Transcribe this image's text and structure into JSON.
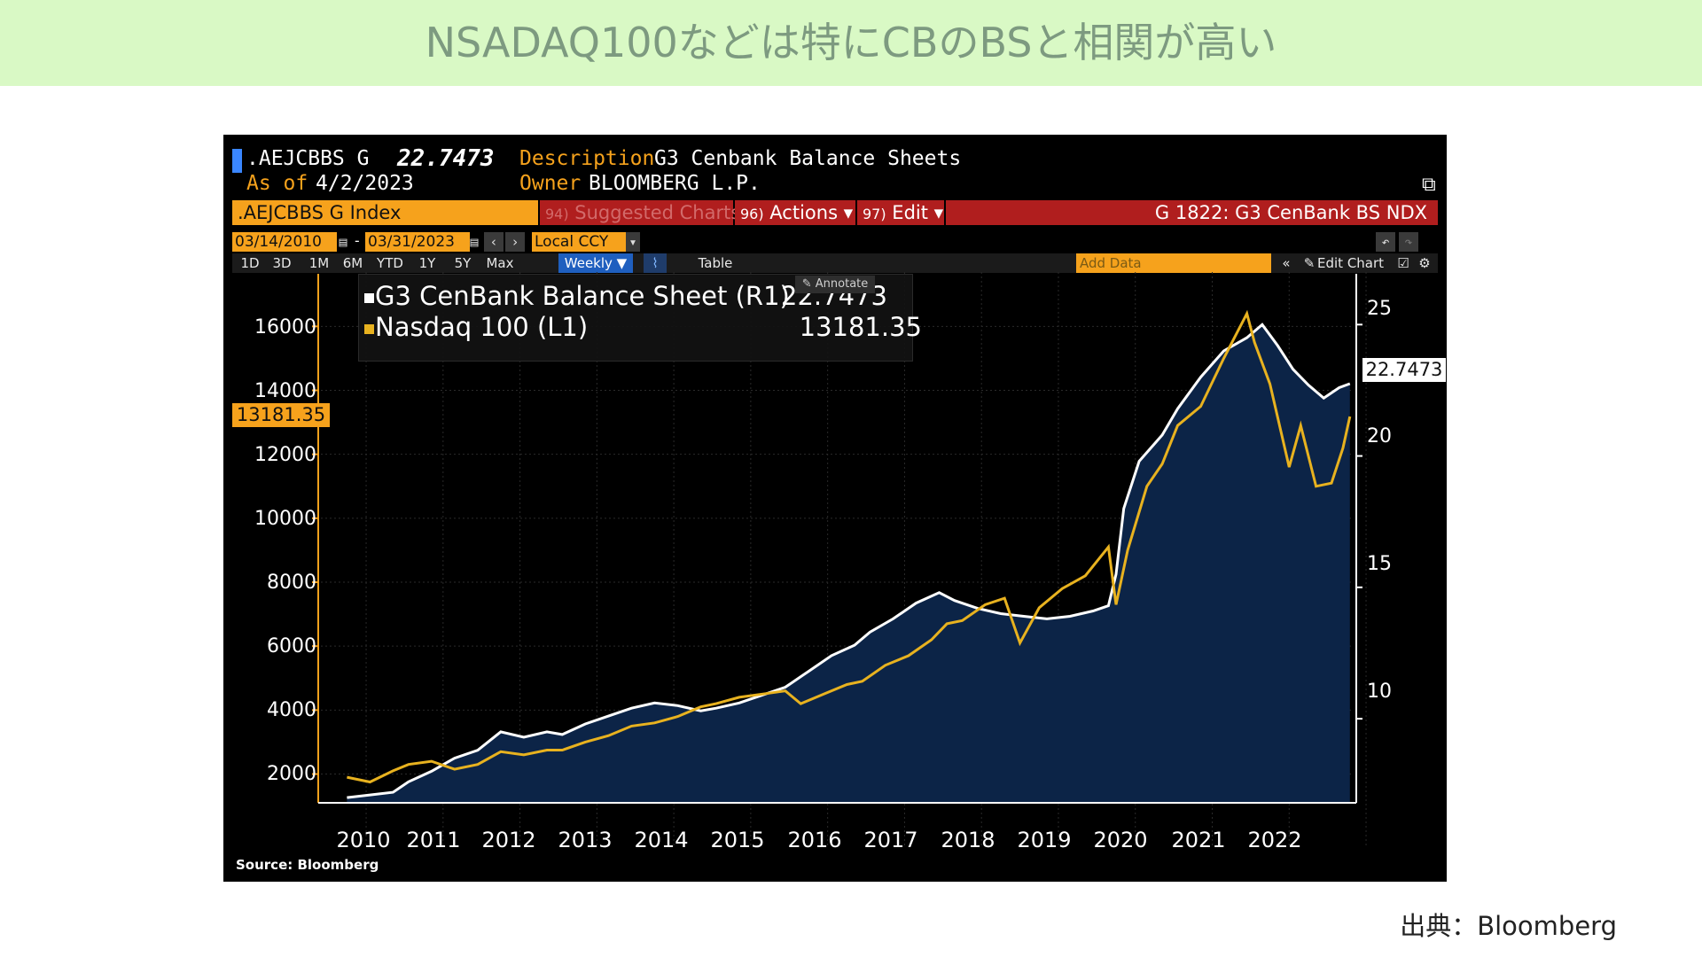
{
  "page": {
    "title": "NSADAQ100などは特にCBのBSと相関が高い",
    "source_note": "出典：Bloomberg"
  },
  "terminal": {
    "ticker": ".AEJCBBS G",
    "last_value": "22.7473",
    "description_label": "Description",
    "description": "G3 Cenbank Balance Sheets",
    "as_of_label": "As of",
    "as_of": "4/2/2023",
    "owner_label": "Owner",
    "owner": "BLOOMBERG L.P.",
    "security": ".AEJCBBS G Index",
    "menu": [
      {
        "num": "94)",
        "label": "Suggested Charts"
      },
      {
        "num": "96)",
        "label": "Actions ▾"
      },
      {
        "num": "97)",
        "label": "Edit ▾"
      }
    ],
    "chart_name": "G 1822: G3 CenBank BS NDX",
    "start_date": "03/14/2010",
    "end_date": "03/31/2023",
    "currency": "Local CCY",
    "periods": [
      "1D",
      "3D",
      "1M",
      "6M",
      "YTD",
      "1Y",
      "5Y",
      "Max"
    ],
    "frequency": "Weekly ▼",
    "table_label": "Table",
    "add_data_placeholder": "Add Data",
    "edit_chart_label": "Edit Chart",
    "annotate_label": "Annotate",
    "source": "Source: Bloomberg"
  },
  "colors": {
    "balance_sheet": "#ffffff",
    "nasdaq": "#e8b21f",
    "area_fill": "#0c2447",
    "accent_orange": "#f6a21c",
    "accent_red": "#b01e1e"
  },
  "chart_data": {
    "type": "line",
    "x_tick_labels": [
      "2010",
      "2011",
      "2012",
      "2013",
      "2014",
      "2015",
      "2016",
      "2017",
      "2018",
      "2019",
      "2020",
      "2021",
      "2022"
    ],
    "left_axis": {
      "ticks": [
        "2000",
        "4000",
        "6000",
        "8000",
        "10000",
        "12000",
        "14000",
        "16000"
      ],
      "ylim": [
        1100,
        17700
      ]
    },
    "right_axis": {
      "ticks": [
        "10",
        "15",
        "20",
        "25"
      ],
      "ylim": [
        6.8,
        27.0
      ]
    },
    "legend": [
      {
        "name": "G3 CenBank Balance Sheet (R1)",
        "value": "22.7473"
      },
      {
        "name": "Nasdaq 100 (L1)",
        "value": "13181.35"
      }
    ],
    "last_labels": {
      "left": "13181.35",
      "right": "22.7473"
    },
    "series": [
      {
        "name": "G3 CenBank Balance Sheet (R1)",
        "axis": "right",
        "points": [
          [
            2010.2,
            7.0
          ],
          [
            2010.5,
            7.1
          ],
          [
            2010.8,
            7.2
          ],
          [
            2011.0,
            7.6
          ],
          [
            2011.3,
            8.0
          ],
          [
            2011.6,
            8.5
          ],
          [
            2011.9,
            8.8
          ],
          [
            2012.2,
            9.5
          ],
          [
            2012.5,
            9.3
          ],
          [
            2012.8,
            9.5
          ],
          [
            2013.0,
            9.4
          ],
          [
            2013.3,
            9.8
          ],
          [
            2013.6,
            10.1
          ],
          [
            2013.9,
            10.4
          ],
          [
            2014.2,
            10.6
          ],
          [
            2014.5,
            10.5
          ],
          [
            2014.8,
            10.3
          ],
          [
            2015.0,
            10.4
          ],
          [
            2015.3,
            10.6
          ],
          [
            2015.6,
            10.9
          ],
          [
            2015.9,
            11.2
          ],
          [
            2016.2,
            11.8
          ],
          [
            2016.5,
            12.4
          ],
          [
            2016.8,
            12.8
          ],
          [
            2017.0,
            13.3
          ],
          [
            2017.3,
            13.8
          ],
          [
            2017.6,
            14.4
          ],
          [
            2017.9,
            14.8
          ],
          [
            2018.1,
            14.5
          ],
          [
            2018.4,
            14.2
          ],
          [
            2018.7,
            14.0
          ],
          [
            2019.0,
            13.9
          ],
          [
            2019.3,
            13.8
          ],
          [
            2019.6,
            13.9
          ],
          [
            2019.9,
            14.1
          ],
          [
            2020.1,
            14.3
          ],
          [
            2020.2,
            15.5
          ],
          [
            2020.3,
            18.0
          ],
          [
            2020.5,
            19.8
          ],
          [
            2020.8,
            20.8
          ],
          [
            2021.0,
            21.8
          ],
          [
            2021.3,
            23.0
          ],
          [
            2021.6,
            24.0
          ],
          [
            2021.9,
            24.5
          ],
          [
            2022.1,
            25.0
          ],
          [
            2022.3,
            24.2
          ],
          [
            2022.5,
            23.3
          ],
          [
            2022.7,
            22.7
          ],
          [
            2022.9,
            22.2
          ],
          [
            2023.1,
            22.6
          ],
          [
            2023.24,
            22.75
          ]
        ]
      },
      {
        "name": "Nasdaq 100 (L1)",
        "axis": "left",
        "points": [
          [
            2010.2,
            1900
          ],
          [
            2010.5,
            1750
          ],
          [
            2010.8,
            2100
          ],
          [
            2011.0,
            2300
          ],
          [
            2011.3,
            2400
          ],
          [
            2011.6,
            2150
          ],
          [
            2011.9,
            2300
          ],
          [
            2012.2,
            2700
          ],
          [
            2012.5,
            2600
          ],
          [
            2012.8,
            2750
          ],
          [
            2013.0,
            2750
          ],
          [
            2013.3,
            3000
          ],
          [
            2013.6,
            3200
          ],
          [
            2013.9,
            3500
          ],
          [
            2014.2,
            3600
          ],
          [
            2014.5,
            3800
          ],
          [
            2014.8,
            4100
          ],
          [
            2015.0,
            4200
          ],
          [
            2015.3,
            4400
          ],
          [
            2015.6,
            4500
          ],
          [
            2015.9,
            4600
          ],
          [
            2016.1,
            4200
          ],
          [
            2016.4,
            4500
          ],
          [
            2016.7,
            4800
          ],
          [
            2016.9,
            4900
          ],
          [
            2017.2,
            5400
          ],
          [
            2017.5,
            5700
          ],
          [
            2017.8,
            6200
          ],
          [
            2018.0,
            6700
          ],
          [
            2018.2,
            6800
          ],
          [
            2018.5,
            7300
          ],
          [
            2018.75,
            7500
          ],
          [
            2018.95,
            6100
          ],
          [
            2019.2,
            7200
          ],
          [
            2019.5,
            7800
          ],
          [
            2019.8,
            8200
          ],
          [
            2020.1,
            9100
          ],
          [
            2020.2,
            7300
          ],
          [
            2020.35,
            9000
          ],
          [
            2020.6,
            11000
          ],
          [
            2020.8,
            11700
          ],
          [
            2021.0,
            12900
          ],
          [
            2021.3,
            13500
          ],
          [
            2021.6,
            15000
          ],
          [
            2021.9,
            16400
          ],
          [
            2022.0,
            15500
          ],
          [
            2022.2,
            14200
          ],
          [
            2022.45,
            11600
          ],
          [
            2022.6,
            12900
          ],
          [
            2022.8,
            11000
          ],
          [
            2023.0,
            11100
          ],
          [
            2023.15,
            12200
          ],
          [
            2023.24,
            13181
          ]
        ]
      }
    ]
  }
}
